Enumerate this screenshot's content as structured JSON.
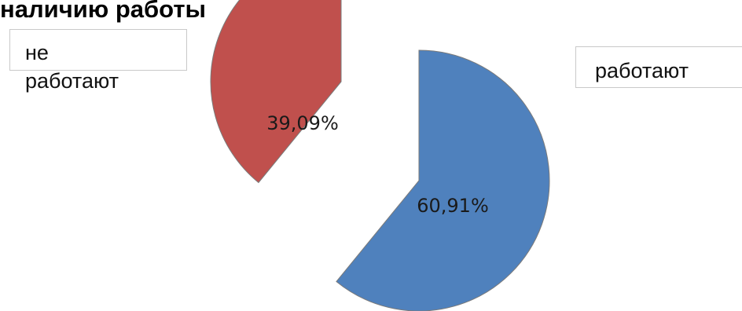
{
  "chart_data": {
    "type": "pie",
    "title": "наличию работы",
    "slices": [
      {
        "name": "работают",
        "value": 60.91,
        "label": "60,91%",
        "color": "#4f81bd",
        "exploded": true
      },
      {
        "name": "не работают",
        "value": 39.09,
        "label": "39,09%",
        "color": "#c0504d",
        "exploded": true
      }
    ],
    "legend": {
      "entries": [
        {
          "name": "не работают",
          "line1": "не",
          "line2": "работают"
        },
        {
          "name": "работают",
          "line1": "работают"
        }
      ]
    }
  }
}
